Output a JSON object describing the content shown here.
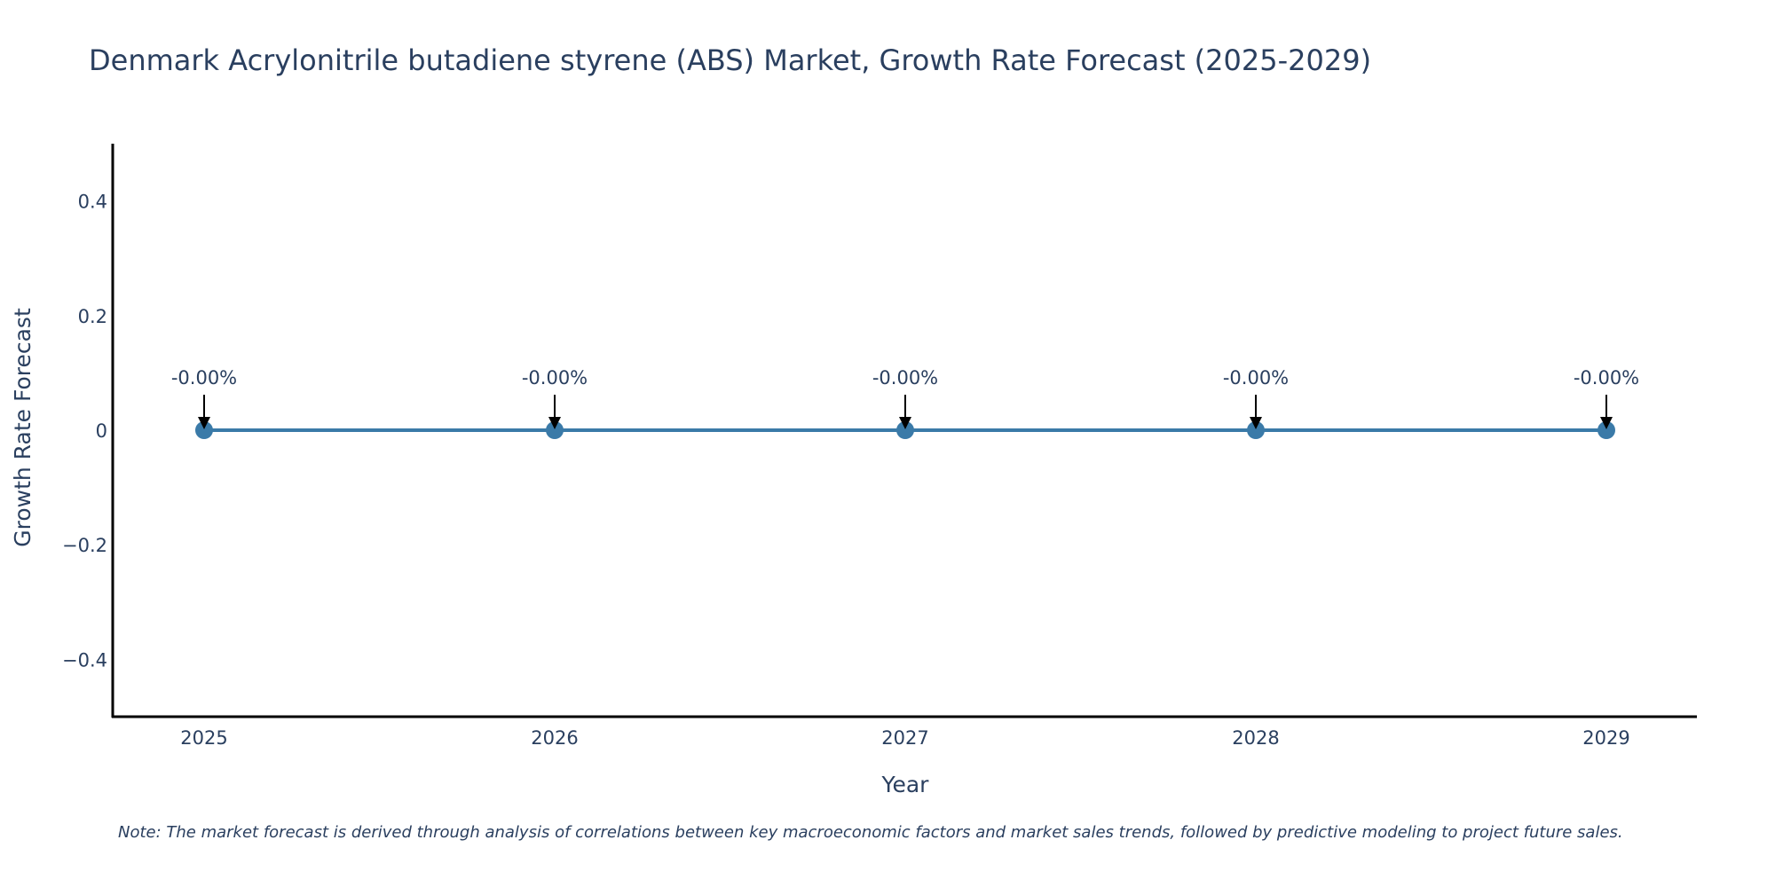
{
  "chart_data": {
    "type": "line",
    "title": "Denmark Acrylonitrile butadiene styrene (ABS) Market, Growth Rate Forecast (2025-2029)",
    "xlabel": "Year",
    "ylabel": "Growth Rate Forecast",
    "categories": [
      "2025",
      "2026",
      "2027",
      "2028",
      "2029"
    ],
    "series": [
      {
        "name": "Growth Rate Forecast",
        "values": [
          0,
          0,
          0,
          0,
          0
        ],
        "color": "#3a7aa8"
      }
    ],
    "ylim": [
      -0.5,
      0.5
    ],
    "yticks": [
      0.4,
      0.2,
      0,
      -0.2,
      -0.4
    ],
    "ytick_labels": [
      "0.4",
      "0.2",
      "0",
      "−0.2",
      "−0.4"
    ],
    "annotations": [
      "-0.00%",
      "-0.00%",
      "-0.00%",
      "-0.00%",
      "-0.00%"
    ],
    "grid": false,
    "legend": "none",
    "note": "Note: The market forecast is derived through analysis of correlations between key macroeconomic factors and market sales trends, followed by predictive modeling to project future sales."
  },
  "colors": {
    "line": "#3a7aa8",
    "axis": "#000000",
    "text": "#2a3f5f"
  }
}
